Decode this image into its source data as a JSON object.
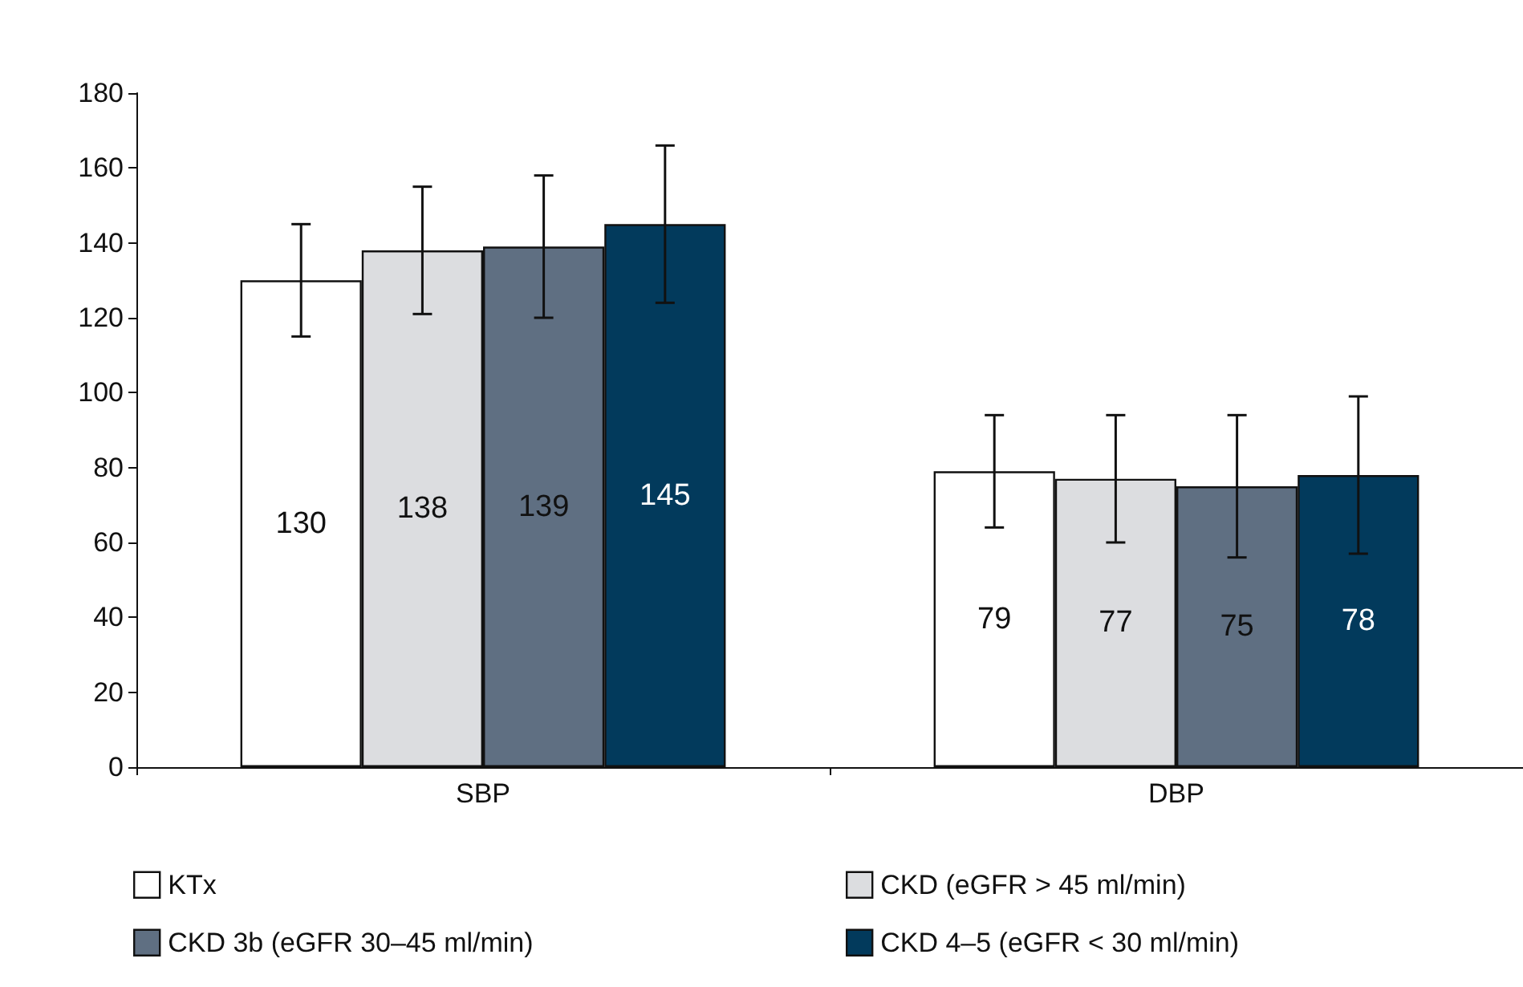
{
  "chart_data": {
    "type": "bar",
    "categories": [
      "SBP",
      "DBP"
    ],
    "series": [
      {
        "name": "KTx",
        "color": "#ffffff",
        "values": [
          130,
          79
        ],
        "errors": [
          15,
          15
        ]
      },
      {
        "name": "CKD (eGFR > 45 ml/min)",
        "color": "#dcdde0",
        "values": [
          138,
          77
        ],
        "errors": [
          17,
          17
        ]
      },
      {
        "name": "CKD 3b (eGFR 30–45 ml/min)",
        "color": "#5f6f82",
        "values": [
          139,
          75
        ],
        "errors": [
          19,
          19
        ]
      },
      {
        "name": "CKD 4–5 (eGFR < 30 ml/min)",
        "color": "#023a5c",
        "values": [
          145,
          78
        ],
        "errors": [
          21,
          21
        ]
      }
    ],
    "ylim": [
      0,
      180
    ],
    "yticks": [
      0,
      20,
      40,
      60,
      80,
      100,
      120,
      140,
      160,
      180
    ],
    "grid": false,
    "legend": "bottom",
    "data_labels": true
  }
}
